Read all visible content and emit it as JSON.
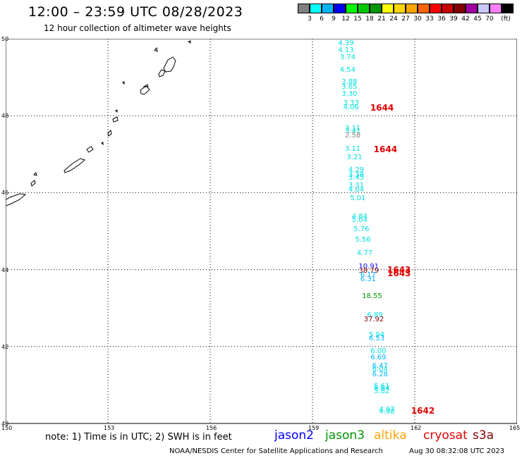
{
  "header": {
    "title": "12:00 – 23:59 UTC 08/28/2023",
    "subtitle": "12 hour collection of altimeter wave heights"
  },
  "colorbar": {
    "colors": [
      "#808080",
      "#00ffff",
      "#00b4ff",
      "#0000ff",
      "#00ff00",
      "#00c800",
      "#009600",
      "#ffff00",
      "#ffd700",
      "#ffa500",
      "#ff6400",
      "#ff0000",
      "#c80000",
      "#800000",
      "#a000a0",
      "#c8c8ff",
      "#ff80ff",
      "#000000"
    ],
    "labels": [
      "3",
      "6",
      "9",
      "12",
      "15",
      "18",
      "21",
      "24",
      "27",
      "30",
      "33",
      "36",
      "39",
      "42",
      "45",
      "70",
      "(ft)"
    ]
  },
  "map": {
    "lat_labels": [
      "50",
      "48",
      "46",
      "44",
      "42",
      "40"
    ],
    "lon_labels": [
      "150",
      "153",
      "156",
      "159",
      "162",
      "165"
    ],
    "measurements": [
      {
        "v": "4.39",
        "c": "#00e0e0",
        "lat": 49.87,
        "lon": 160.0
      },
      {
        "v": "4.13",
        "c": "#00e0e0",
        "lat": 49.69,
        "lon": 160.0
      },
      {
        "v": "3.74",
        "c": "#00e0e0",
        "lat": 49.51,
        "lon": 160.05
      },
      {
        "v": "4.54",
        "c": "#00e0e0",
        "lat": 49.18,
        "lon": 160.05
      },
      {
        "v": "3.88",
        "c": "#00e0e0",
        "lat": 48.87,
        "lon": 160.1
      },
      {
        "v": "3.65",
        "c": "#00e0e0",
        "lat": 48.74,
        "lon": 160.1
      },
      {
        "v": "3.30",
        "c": "#00e0e0",
        "lat": 48.56,
        "lon": 160.1
      },
      {
        "v": "3.33",
        "c": "#00e0e0",
        "lat": 48.31,
        "lon": 160.15
      },
      {
        "v": "4.06",
        "c": "#00e0e0",
        "lat": 48.2,
        "lon": 160.15
      },
      {
        "v": "3.11",
        "c": "#00e0e0",
        "lat": 47.66,
        "lon": 160.2
      },
      {
        "v": "3.41",
        "c": "#00e0e0",
        "lat": 47.58,
        "lon": 160.2
      },
      {
        "v": "2.58",
        "c": "#808080",
        "lat": 47.47,
        "lon": 160.2
      },
      {
        "v": "3.11",
        "c": "#00e0e0",
        "lat": 47.12,
        "lon": 160.2
      },
      {
        "v": "3.21",
        "c": "#00e0e0",
        "lat": 46.9,
        "lon": 160.25
      },
      {
        "v": "4.29",
        "c": "#00e0e0",
        "lat": 46.58,
        "lon": 160.3
      },
      {
        "v": "3.38",
        "c": "#00e0e0",
        "lat": 46.44,
        "lon": 160.3
      },
      {
        "v": "3.45",
        "c": "#00e0e0",
        "lat": 46.37,
        "lon": 160.3
      },
      {
        "v": "3.31",
        "c": "#00e0e0",
        "lat": 46.17,
        "lon": 160.3
      },
      {
        "v": "4.04",
        "c": "#00e0e0",
        "lat": 46.06,
        "lon": 160.3
      },
      {
        "v": "5.01",
        "c": "#00e0e0",
        "lat": 45.84,
        "lon": 160.35
      },
      {
        "v": "4.84",
        "c": "#00e0e0",
        "lat": 45.37,
        "lon": 160.4
      },
      {
        "v": "5.04",
        "c": "#00e0e0",
        "lat": 45.28,
        "lon": 160.4
      },
      {
        "v": "5.76",
        "c": "#00e0e0",
        "lat": 45.04,
        "lon": 160.45
      },
      {
        "v": "5.56",
        "c": "#00e0e0",
        "lat": 44.76,
        "lon": 160.5
      },
      {
        "v": "4.77",
        "c": "#00e0e0",
        "lat": 44.41,
        "lon": 160.55
      },
      {
        "v": "10.91",
        "c": "#0000ff",
        "lat": 44.07,
        "lon": 160.6
      },
      {
        "v": "38.79",
        "c": "#800000",
        "lat": 43.96,
        "lon": 160.6
      },
      {
        "v": "6.17",
        "c": "#00b4ff",
        "lat": 43.85,
        "lon": 160.65
      },
      {
        "v": "6.31",
        "c": "#00b4ff",
        "lat": 43.74,
        "lon": 160.65
      },
      {
        "v": "18.55",
        "c": "#009600",
        "lat": 43.3,
        "lon": 160.7
      },
      {
        "v": "6.89",
        "c": "#00e0e0",
        "lat": 42.81,
        "lon": 160.85
      },
      {
        "v": "37.92",
        "c": "#800000",
        "lat": 42.7,
        "lon": 160.75
      },
      {
        "v": "5.94",
        "c": "#00e0e0",
        "lat": 42.29,
        "lon": 160.9
      },
      {
        "v": "6.53",
        "c": "#00b4ff",
        "lat": 42.2,
        "lon": 160.9
      },
      {
        "v": "6.00",
        "c": "#00e0e0",
        "lat": 41.86,
        "lon": 160.95
      },
      {
        "v": "6.69",
        "c": "#00b4ff",
        "lat": 41.7,
        "lon": 160.95
      },
      {
        "v": "6.47",
        "c": "#00b4ff",
        "lat": 41.48,
        "lon": 161.0
      },
      {
        "v": "6.04",
        "c": "#00e0e0",
        "lat": 41.39,
        "lon": 161.0
      },
      {
        "v": "6.28",
        "c": "#00b4ff",
        "lat": 41.26,
        "lon": 161.0
      },
      {
        "v": "5.61",
        "c": "#00e0e0",
        "lat": 40.96,
        "lon": 161.05
      },
      {
        "v": "5.64",
        "c": "#00e0e0",
        "lat": 40.89,
        "lon": 161.05
      },
      {
        "v": "5.82",
        "c": "#00e0e0",
        "lat": 40.83,
        "lon": 161.05
      },
      {
        "v": "4.97",
        "c": "#00e0e0",
        "lat": 40.35,
        "lon": 161.2
      },
      {
        "v": "4.98",
        "c": "#00e0e0",
        "lat": 40.3,
        "lon": 161.2
      }
    ],
    "time_tags": [
      {
        "v": "1644",
        "lat": 48.2,
        "lon": 160.9
      },
      {
        "v": "1644",
        "lat": 47.13,
        "lon": 161.0
      },
      {
        "v": "1643",
        "lat": 44.0,
        "lon": 161.4
      },
      {
        "v": "1643",
        "lat": 43.9,
        "lon": 161.4
      },
      {
        "v": "1642",
        "lat": 40.33,
        "lon": 162.1
      }
    ]
  },
  "legend": {
    "note": "note:  1) Time is in UTC;  2) SWH is in feet",
    "satellites": [
      {
        "name": "jason2",
        "color": "#0000ff"
      },
      {
        "name": "jason3",
        "color": "#009600"
      },
      {
        "name": "altika",
        "color": "#ffa500"
      },
      {
        "name": "cryosat",
        "color": "#e00000"
      },
      {
        "name": "s3a",
        "color": "#800000"
      }
    ]
  },
  "footer": {
    "left": "NOAA/NESDIS Center for Satellite Applications and Research",
    "right": "Aug 30 08:32:08 UTC 2023"
  }
}
